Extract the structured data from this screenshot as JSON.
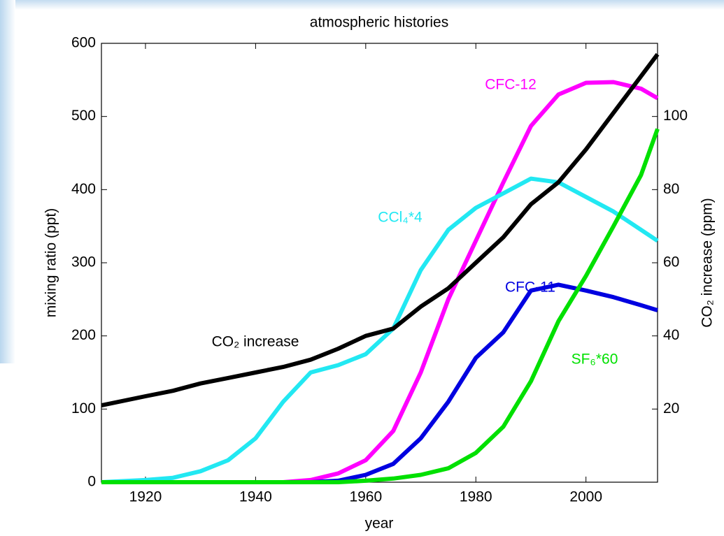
{
  "chart_data": {
    "type": "line",
    "title": "atmospheric histories",
    "xlabel": "year",
    "ylabel": "mixing ratio (ppt)",
    "y2label": "CO₂ increase (ppm)",
    "x": [
      1912,
      1920,
      1925,
      1930,
      1935,
      1940,
      1945,
      1950,
      1955,
      1960,
      1965,
      1970,
      1975,
      1980,
      1985,
      1990,
      1995,
      2000,
      2005,
      2010,
      2013
    ],
    "series": [
      {
        "name": "CFC-12",
        "color": "#ff00ff",
        "values": [
          0,
          0,
          0,
          0,
          0,
          0,
          0,
          3,
          12,
          30,
          70,
          150,
          250,
          330,
          410,
          487,
          530,
          546,
          547,
          538,
          525
        ]
      },
      {
        "name": "CCl₄*4",
        "color": "#22e8f2",
        "values": [
          0,
          3,
          6,
          15,
          30,
          60,
          110,
          150,
          160,
          175,
          210,
          290,
          345,
          375,
          395,
          415,
          410,
          390,
          370,
          345,
          330
        ]
      },
      {
        "name": "CFC-11",
        "color": "#0000e0",
        "values": [
          0,
          0,
          0,
          0,
          0,
          0,
          0,
          0,
          2,
          10,
          25,
          60,
          110,
          170,
          205,
          262,
          270,
          262,
          253,
          242,
          235
        ]
      },
      {
        "name": "SF₆*60",
        "color": "#00e000",
        "values": [
          0,
          0,
          0,
          0,
          0,
          0,
          0,
          0,
          0,
          2,
          5,
          10,
          19,
          40,
          76,
          138,
          220,
          282,
          350,
          420,
          483
        ]
      },
      {
        "name": "CO₂ increase",
        "color": "#000000",
        "axis": "y2",
        "values": [
          21,
          23.5,
          25,
          27,
          28.5,
          30,
          31.5,
          33.5,
          36.5,
          40,
          42,
          48,
          53,
          60,
          67,
          76,
          82,
          91,
          101,
          111,
          117
        ]
      }
    ],
    "xlim": [
      1912,
      2013
    ],
    "xticks": [
      1920,
      1940,
      1960,
      1980,
      2000
    ],
    "ylim": [
      0,
      600
    ],
    "yticks": [
      0,
      100,
      200,
      300,
      400,
      500,
      600
    ],
    "y2lim": [
      0,
      120
    ],
    "y2ticks": [
      20,
      40,
      60,
      80,
      100
    ]
  }
}
